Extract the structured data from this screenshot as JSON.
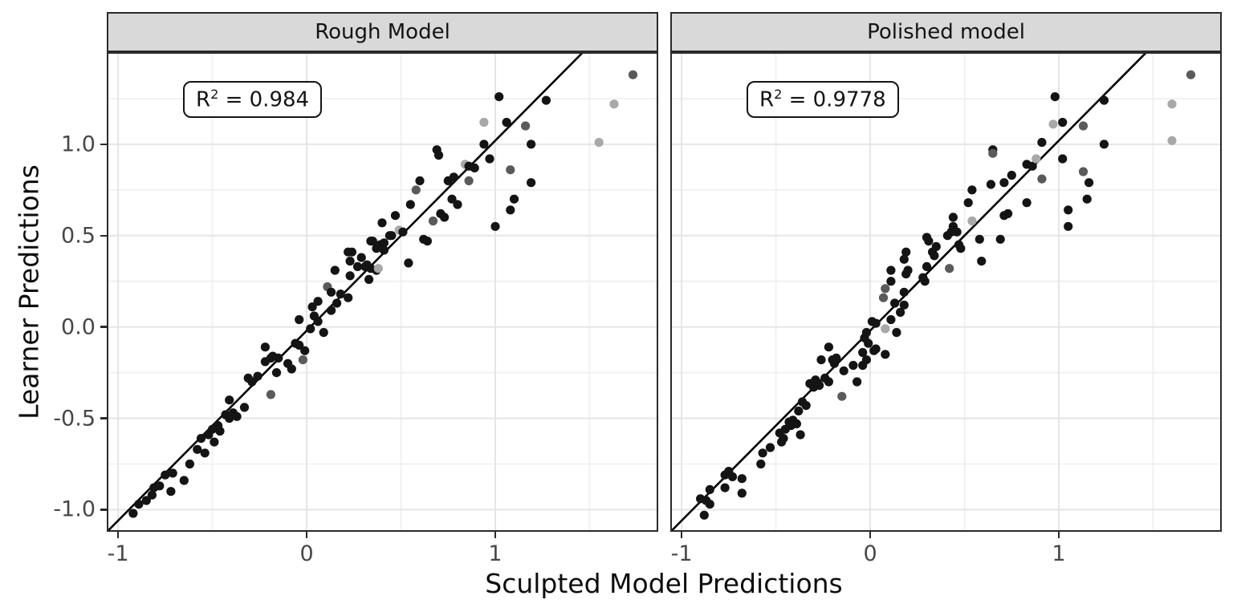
{
  "figure": {
    "x_axis_title": "Sculpted Model Predictions",
    "y_axis_title": "Learner Predictions",
    "background": "#ffffff"
  },
  "axes": {
    "x_range": [
      -1.06,
      1.864
    ],
    "y_range": [
      -1.121,
      1.504
    ],
    "x_ticks": [
      -1,
      0,
      1
    ],
    "x_tick_labels": [
      "-1",
      "0",
      "1"
    ],
    "y_ticks": [
      1.0,
      0.5,
      0.0,
      -0.5,
      -1.0
    ],
    "y_tick_labels": [
      "1.0",
      "0.5",
      "0.0",
      "-0.5",
      "-1.0"
    ],
    "x_minor": [
      -0.5,
      0.5,
      1.5
    ],
    "y_minor": [
      1.25,
      0.75,
      0.25,
      -0.25,
      -0.75
    ],
    "grid": true,
    "legend": "none"
  },
  "colors": {
    "strip_background": "#d9d9d9",
    "panel_border": "#2a2a2a",
    "grid_major": "#e5e5e5",
    "grid_minor": "#f0f0f0",
    "fit_line": "#000000",
    "tick_label": "#474747",
    "point_shades": [
      "#141414",
      "#5a5a5a",
      "#a8a8a8"
    ]
  },
  "chart_data": [
    {
      "type": "scatter",
      "title": "Rough Model",
      "xlabel": "Sculpted Model Predictions",
      "ylabel": "Learner Predictions",
      "r_squared": 0.984,
      "annotation": {
        "base": "R",
        "sup": "2",
        "rest": " = 0.984",
        "text": "R² = 0.984"
      },
      "line": {
        "slope": 1.04,
        "intercept": -0.02
      },
      "points": [
        [
          -0.92,
          -1.02,
          0
        ],
        [
          -0.89,
          -0.97,
          0
        ],
        [
          -0.85,
          -0.95,
          0
        ],
        [
          -0.82,
          -0.92,
          0
        ],
        [
          -0.81,
          -0.88,
          0
        ],
        [
          -0.78,
          -0.87,
          0
        ],
        [
          -0.72,
          -0.9,
          0
        ],
        [
          -0.75,
          -0.81,
          0
        ],
        [
          -0.71,
          -0.8,
          0
        ],
        [
          -0.65,
          -0.84,
          0
        ],
        [
          -0.62,
          -0.75,
          0
        ],
        [
          -0.58,
          -0.67,
          0
        ],
        [
          -0.54,
          -0.69,
          0
        ],
        [
          -0.56,
          -0.61,
          0
        ],
        [
          -0.52,
          -0.59,
          0
        ],
        [
          -0.49,
          -0.63,
          0
        ],
        [
          -0.5,
          -0.56,
          0
        ],
        [
          -0.47,
          -0.54,
          0
        ],
        [
          -0.46,
          -0.57,
          0
        ],
        [
          -0.43,
          -0.48,
          0
        ],
        [
          -0.41,
          -0.5,
          0
        ],
        [
          -0.39,
          -0.47,
          0
        ],
        [
          -0.37,
          -0.49,
          0
        ],
        [
          -0.41,
          -0.4,
          0
        ],
        [
          -0.33,
          -0.44,
          0
        ],
        [
          -0.31,
          -0.28,
          0
        ],
        [
          -0.29,
          -0.3,
          0
        ],
        [
          -0.26,
          -0.27,
          0
        ],
        [
          -0.19,
          -0.37,
          1
        ],
        [
          -0.22,
          -0.19,
          0
        ],
        [
          -0.18,
          -0.16,
          0
        ],
        [
          -0.22,
          -0.11,
          0
        ],
        [
          -0.19,
          -0.17,
          0
        ],
        [
          -0.16,
          -0.25,
          0
        ],
        [
          -0.15,
          -0.17,
          0
        ],
        [
          -0.1,
          -0.2,
          0
        ],
        [
          -0.08,
          -0.23,
          0
        ],
        [
          -0.06,
          -0.09,
          0
        ],
        [
          -0.04,
          -0.1,
          0
        ],
        [
          -0.01,
          -0.13,
          0
        ],
        [
          -0.02,
          -0.18,
          1
        ],
        [
          -0.04,
          0.04,
          0
        ],
        [
          0.02,
          -0.01,
          0
        ],
        [
          0.03,
          0.11,
          0
        ],
        [
          0.04,
          0.06,
          0
        ],
        [
          0.06,
          0.03,
          0
        ],
        [
          0.09,
          -0.03,
          0
        ],
        [
          0.06,
          0.14,
          0
        ],
        [
          0.11,
          0.22,
          1
        ],
        [
          0.13,
          0.09,
          0
        ],
        [
          0.13,
          0.19,
          0
        ],
        [
          0.16,
          0.13,
          0
        ],
        [
          0.18,
          0.18,
          0
        ],
        [
          0.22,
          0.16,
          0
        ],
        [
          0.23,
          0.28,
          0
        ],
        [
          0.23,
          0.36,
          0
        ],
        [
          0.22,
          0.41,
          0
        ],
        [
          0.27,
          0.33,
          0
        ],
        [
          0.29,
          0.38,
          0
        ],
        [
          0.15,
          0.31,
          0
        ],
        [
          0.31,
          0.33,
          0
        ],
        [
          0.34,
          0.32,
          0
        ],
        [
          0.37,
          0.31,
          0
        ],
        [
          0.38,
          0.32,
          2
        ],
        [
          0.32,
          0.34,
          0
        ],
        [
          0.33,
          0.26,
          0
        ],
        [
          0.24,
          0.41,
          0
        ],
        [
          0.35,
          0.47,
          0
        ],
        [
          0.39,
          0.45,
          0
        ],
        [
          0.41,
          0.46,
          0
        ],
        [
          0.44,
          0.5,
          0
        ],
        [
          0.34,
          0.47,
          0
        ],
        [
          0.37,
          0.43,
          0
        ],
        [
          0.41,
          0.42,
          0
        ],
        [
          0.45,
          0.5,
          0
        ],
        [
          0.49,
          0.53,
          2
        ],
        [
          0.51,
          0.52,
          0
        ],
        [
          0.47,
          0.61,
          0
        ],
        [
          0.4,
          0.57,
          0
        ],
        [
          0.55,
          0.67,
          0
        ],
        [
          0.58,
          0.75,
          1
        ],
        [
          0.6,
          0.8,
          0
        ],
        [
          0.62,
          0.48,
          0
        ],
        [
          0.64,
          0.47,
          0
        ],
        [
          0.54,
          0.35,
          0
        ],
        [
          0.67,
          0.58,
          1
        ],
        [
          0.71,
          0.62,
          0
        ],
        [
          0.73,
          0.6,
          0
        ],
        [
          0.69,
          0.97,
          0
        ],
        [
          0.7,
          0.94,
          0
        ],
        [
          0.75,
          0.8,
          0
        ],
        [
          0.78,
          0.82,
          0
        ],
        [
          0.84,
          0.89,
          2
        ],
        [
          0.86,
          0.88,
          0
        ],
        [
          0.89,
          0.87,
          0
        ],
        [
          0.86,
          0.8,
          1
        ],
        [
          0.77,
          0.7,
          0
        ],
        [
          0.8,
          0.67,
          0
        ],
        [
          0.94,
          1.12,
          2
        ],
        [
          1.06,
          1.12,
          0
        ],
        [
          1.16,
          1.1,
          1
        ],
        [
          0.94,
          1.0,
          0
        ],
        [
          1.19,
          1.0,
          0
        ],
        [
          0.97,
          0.92,
          0
        ],
        [
          1.08,
          0.86,
          1
        ],
        [
          1.19,
          0.79,
          0
        ],
        [
          1.1,
          0.7,
          0
        ],
        [
          1.08,
          0.64,
          0
        ],
        [
          1.0,
          0.55,
          0
        ],
        [
          1.02,
          1.26,
          0
        ],
        [
          1.27,
          1.24,
          0
        ],
        [
          1.73,
          1.38,
          1
        ],
        [
          1.63,
          1.22,
          2
        ],
        [
          1.55,
          1.01,
          2
        ]
      ]
    },
    {
      "type": "scatter",
      "title": "Polished model",
      "xlabel": "Sculpted Model Predictions",
      "ylabel": "Learner Predictions",
      "r_squared": 0.9778,
      "annotation": {
        "base": "R",
        "sup": "2",
        "rest": " = 0.9778",
        "text": "R² = 0.9778"
      },
      "line": {
        "slope": 1.04,
        "intercept": -0.02
      },
      "points": [
        [
          -0.88,
          -1.03,
          0
        ],
        [
          -0.9,
          -0.94,
          0
        ],
        [
          -0.87,
          -0.95,
          0
        ],
        [
          -0.85,
          -0.97,
          0
        ],
        [
          -0.85,
          -0.89,
          0
        ],
        [
          -0.77,
          -0.81,
          0
        ],
        [
          -0.77,
          -0.88,
          0
        ],
        [
          -0.75,
          -0.79,
          0
        ],
        [
          -0.73,
          -0.82,
          0
        ],
        [
          -0.68,
          -0.83,
          0
        ],
        [
          -0.68,
          -0.91,
          0
        ],
        [
          -0.58,
          -0.75,
          0
        ],
        [
          -0.57,
          -0.69,
          0
        ],
        [
          -0.53,
          -0.66,
          0
        ],
        [
          -0.48,
          -0.58,
          0
        ],
        [
          -0.46,
          -0.61,
          0
        ],
        [
          -0.45,
          -0.56,
          0
        ],
        [
          -0.43,
          -0.52,
          0
        ],
        [
          -0.42,
          -0.54,
          0
        ],
        [
          -0.41,
          -0.51,
          0
        ],
        [
          -0.39,
          -0.53,
          0
        ],
        [
          -0.37,
          -0.59,
          0
        ],
        [
          -0.47,
          -0.63,
          0
        ],
        [
          -0.38,
          -0.46,
          0
        ],
        [
          -0.36,
          -0.41,
          0
        ],
        [
          -0.34,
          -0.43,
          0
        ],
        [
          -0.32,
          -0.31,
          0
        ],
        [
          -0.3,
          -0.33,
          0
        ],
        [
          -0.29,
          -0.29,
          0
        ],
        [
          -0.27,
          -0.32,
          0
        ],
        [
          -0.24,
          -0.28,
          0
        ],
        [
          -0.22,
          -0.3,
          0
        ],
        [
          -0.2,
          -0.18,
          0
        ],
        [
          -0.18,
          -0.17,
          0
        ],
        [
          -0.19,
          -0.2,
          0
        ],
        [
          -0.14,
          -0.24,
          0
        ],
        [
          -0.15,
          -0.38,
          1
        ],
        [
          -0.09,
          -0.21,
          0
        ],
        [
          -0.07,
          -0.3,
          0
        ],
        [
          -0.04,
          -0.14,
          0
        ],
        [
          -0.02,
          -0.18,
          0
        ],
        [
          0.03,
          -0.12,
          0
        ],
        [
          0.08,
          -0.15,
          0
        ],
        [
          -0.22,
          -0.11,
          0
        ],
        [
          -0.26,
          -0.18,
          0
        ],
        [
          -0.19,
          -0.18,
          0
        ],
        [
          -0.04,
          -0.21,
          0
        ],
        [
          -0.01,
          -0.09,
          0
        ],
        [
          0.02,
          -0.13,
          0
        ],
        [
          -0.03,
          -0.06,
          0
        ],
        [
          -0.02,
          -0.03,
          0
        ],
        [
          0.01,
          0.03,
          0
        ],
        [
          0.03,
          0.02,
          0
        ],
        [
          0.08,
          -0.01,
          2
        ],
        [
          0.14,
          -0.03,
          0
        ],
        [
          0.11,
          0.04,
          0
        ],
        [
          0.13,
          0.13,
          0
        ],
        [
          0.16,
          0.08,
          0
        ],
        [
          0.18,
          0.12,
          0
        ],
        [
          0.18,
          0.19,
          0
        ],
        [
          0.07,
          0.16,
          1
        ],
        [
          0.08,
          0.21,
          1
        ],
        [
          0.11,
          0.25,
          0
        ],
        [
          0.11,
          0.31,
          0
        ],
        [
          0.19,
          0.29,
          0
        ],
        [
          0.2,
          0.31,
          0
        ],
        [
          0.18,
          0.37,
          0
        ],
        [
          0.19,
          0.41,
          0
        ],
        [
          0.28,
          0.27,
          0
        ],
        [
          0.29,
          0.25,
          0
        ],
        [
          0.3,
          0.33,
          0
        ],
        [
          0.31,
          0.47,
          0
        ],
        [
          0.33,
          0.41,
          0
        ],
        [
          0.35,
          0.44,
          0
        ],
        [
          0.34,
          0.39,
          0
        ],
        [
          0.41,
          0.5,
          0
        ],
        [
          0.43,
          0.52,
          0
        ],
        [
          0.47,
          0.45,
          0
        ],
        [
          0.48,
          0.43,
          0
        ],
        [
          0.42,
          0.32,
          1
        ],
        [
          0.58,
          0.48,
          0
        ],
        [
          0.59,
          0.36,
          0
        ],
        [
          0.69,
          0.48,
          0
        ],
        [
          0.44,
          0.6,
          0
        ],
        [
          0.44,
          0.55,
          0
        ],
        [
          0.3,
          0.49,
          0
        ],
        [
          0.46,
          0.52,
          0
        ],
        [
          0.54,
          0.58,
          2
        ],
        [
          0.52,
          0.68,
          0
        ],
        [
          0.54,
          0.75,
          0
        ],
        [
          0.64,
          0.78,
          0
        ],
        [
          0.71,
          0.79,
          0
        ],
        [
          0.75,
          0.83,
          0
        ],
        [
          0.65,
          0.97,
          0
        ],
        [
          0.65,
          0.95,
          1
        ],
        [
          0.83,
          0.89,
          0
        ],
        [
          0.86,
          0.88,
          0
        ],
        [
          0.88,
          0.92,
          2
        ],
        [
          0.91,
          0.81,
          1
        ],
        [
          0.91,
          1.01,
          0
        ],
        [
          0.97,
          1.11,
          2
        ],
        [
          1.02,
          1.12,
          0
        ],
        [
          0.98,
          1.26,
          0
        ],
        [
          1.24,
          1.24,
          0
        ],
        [
          1.13,
          1.1,
          1
        ],
        [
          1.24,
          1.0,
          0
        ],
        [
          1.02,
          0.92,
          0
        ],
        [
          1.13,
          0.85,
          1
        ],
        [
          1.16,
          0.79,
          0
        ],
        [
          1.15,
          0.7,
          0
        ],
        [
          0.71,
          0.61,
          0
        ],
        [
          0.73,
          0.62,
          0
        ],
        [
          0.83,
          0.68,
          0
        ],
        [
          1.05,
          0.64,
          0
        ],
        [
          1.05,
          0.55,
          0
        ],
        [
          1.7,
          1.38,
          1
        ],
        [
          1.6,
          1.22,
          2
        ],
        [
          1.6,
          1.02,
          2
        ]
      ]
    }
  ]
}
